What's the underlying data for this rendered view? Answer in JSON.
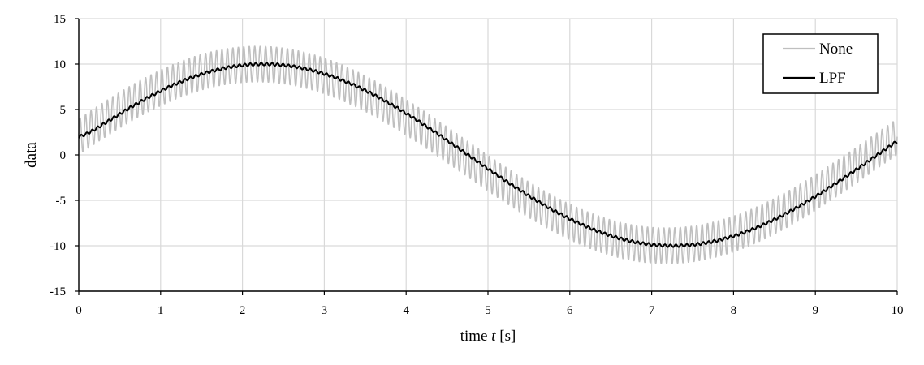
{
  "chart_data": {
    "type": "line",
    "xlabel_prefix": "time ",
    "xlabel_var": "t",
    "xlabel_suffix": " [s]",
    "ylabel": "data",
    "xlim": [
      0,
      10
    ],
    "ylim": [
      -15,
      15
    ],
    "x_ticks": [
      0,
      1,
      2,
      3,
      4,
      5,
      6,
      7,
      8,
      9,
      10
    ],
    "y_ticks": [
      -15,
      -10,
      -5,
      0,
      5,
      10,
      15
    ],
    "grid": true,
    "legend_position": "top-right",
    "series": [
      {
        "name": "None",
        "color": "#bfbfbf",
        "description_values": {
          "base_amplitude": 10,
          "base_period_s": 10,
          "base_phase_at_0": 2,
          "noise_amplitude": 2,
          "noise_frequency_hz": 15
        }
      },
      {
        "name": "LPF",
        "color": "#000000",
        "description_values": {
          "amplitude": 10,
          "period_s": 10,
          "value_at_0": 2,
          "min_near_start": 1.1,
          "ripple_amplitude": 0.15
        }
      }
    ],
    "lpf_points": [
      [
        0,
        2.0
      ],
      [
        0.1,
        1.5
      ],
      [
        0.2,
        1.2
      ],
      [
        0.5,
        2.4
      ],
      [
        1.0,
        5.2
      ],
      [
        1.5,
        7.4
      ],
      [
        2.0,
        9.0
      ],
      [
        2.5,
        9.9
      ],
      [
        3.0,
        9.6
      ],
      [
        3.5,
        8.2
      ],
      [
        4.0,
        5.9
      ],
      [
        4.5,
        3.0
      ],
      [
        5.0,
        -0.1
      ],
      [
        5.5,
        -3.2
      ],
      [
        6.0,
        -6.0
      ],
      [
        6.5,
        -8.3
      ],
      [
        7.0,
        -9.6
      ],
      [
        7.5,
        -9.7
      ],
      [
        8.0,
        -8.6
      ],
      [
        8.5,
        -6.5
      ],
      [
        9.0,
        -3.6
      ],
      [
        9.5,
        -0.5
      ],
      [
        10.0,
        2.5
      ]
    ]
  }
}
